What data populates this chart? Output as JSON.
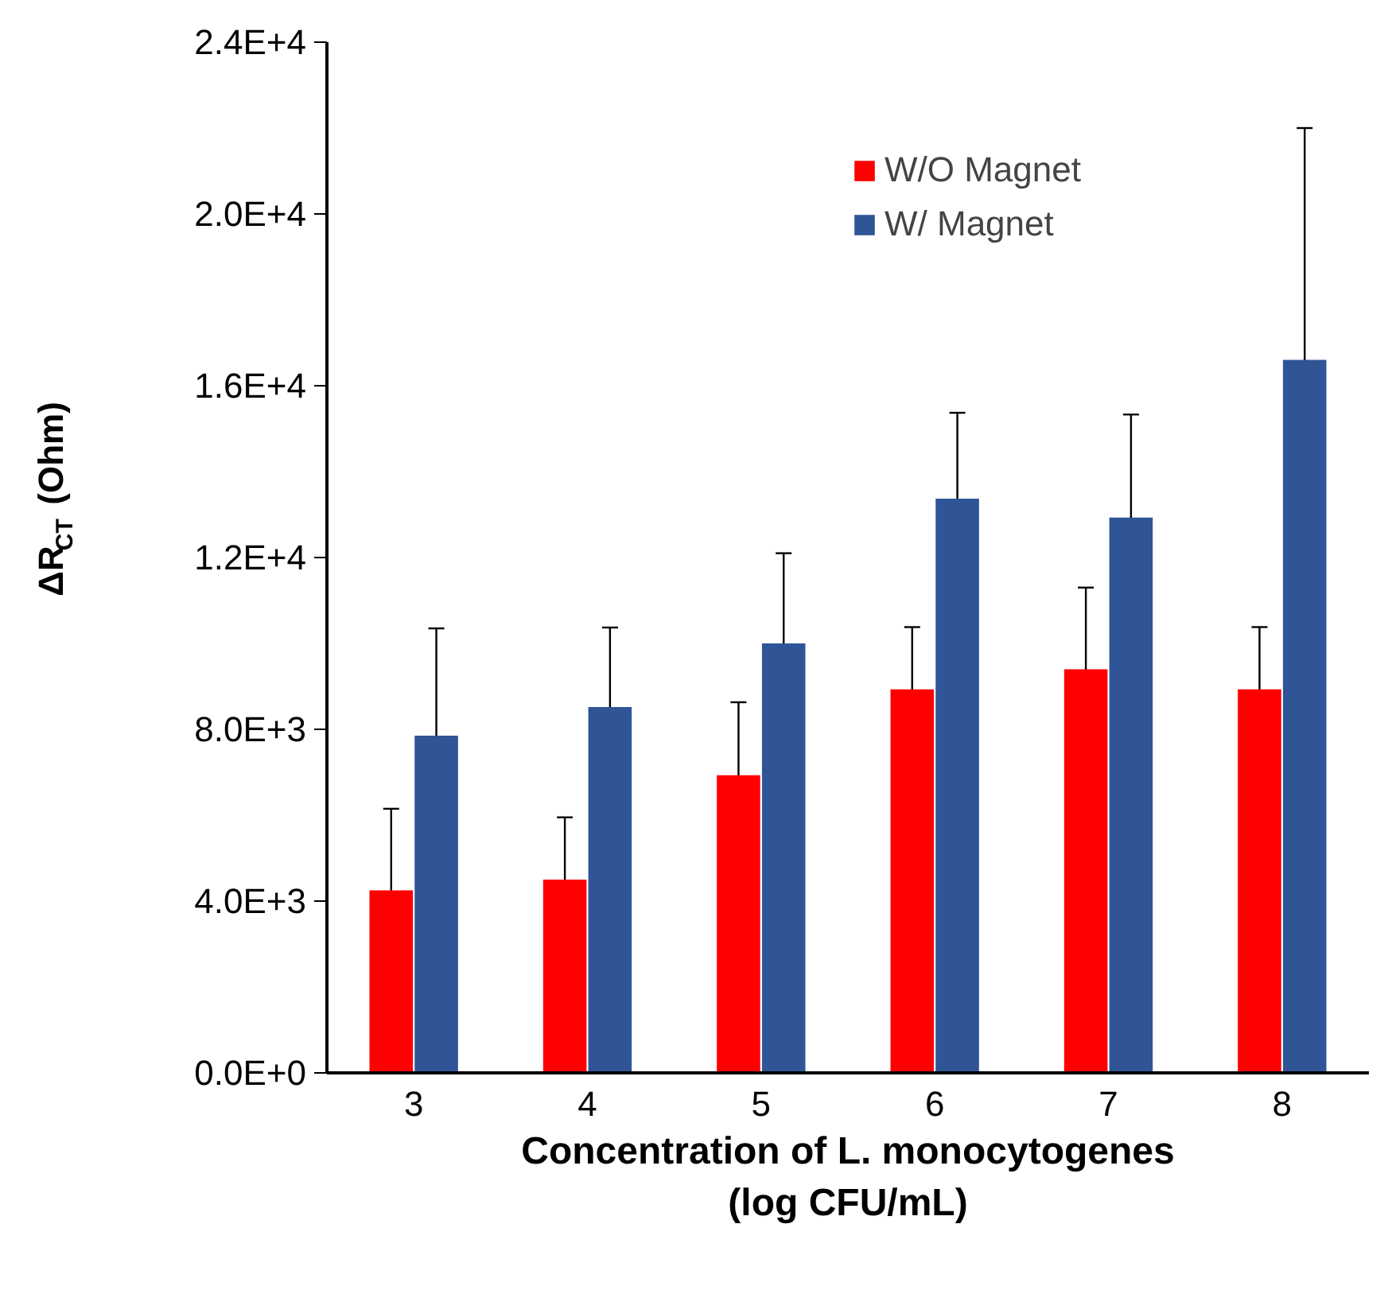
{
  "chart_data": {
    "type": "bar",
    "xlabel": "Concentration of L. monocytogenes\n(log CFU/mL)",
    "ylabel": "ΔR$_{CT}$ (Ohm)",
    "categories": [
      "3",
      "4",
      "5",
      "6",
      "7",
      "8"
    ],
    "series": [
      {
        "name": "W/O Magnet",
        "color": "#ff0000",
        "values": [
          4250,
          4500,
          6930,
          8930,
          9400,
          8930
        ],
        "errors": [
          1900,
          1450,
          1700,
          1450,
          1900,
          1450
        ]
      },
      {
        "name": "W/ Magnet",
        "color": "#2f5597",
        "values": [
          7850,
          8520,
          10000,
          13370,
          12930,
          16600
        ],
        "errors": [
          2500,
          1850,
          2100,
          2000,
          2400,
          5400
        ]
      }
    ],
    "ylim": [
      0,
      24000
    ],
    "yticks": [
      {
        "value": 0,
        "label": "0.0E+0"
      },
      {
        "value": 4000,
        "label": "4.0E+3"
      },
      {
        "value": 8000,
        "label": "8.0E+3"
      },
      {
        "value": 12000,
        "label": "1.2E+4"
      },
      {
        "value": 16000,
        "label": "1.6E+4"
      },
      {
        "value": 20000,
        "label": "2.0E+4"
      },
      {
        "value": 24000,
        "label": "2.4E+4"
      }
    ],
    "grid": false,
    "legend": "top right"
  }
}
